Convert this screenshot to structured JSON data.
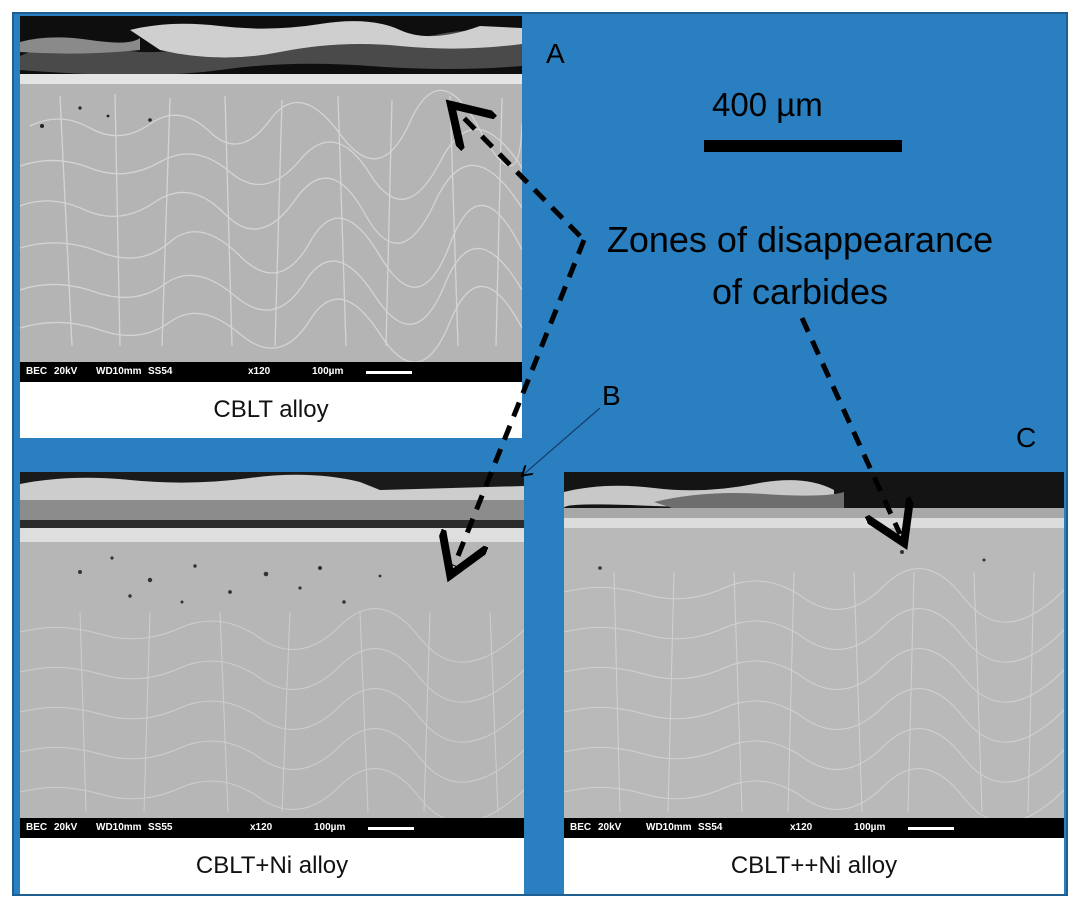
{
  "colors": {
    "background_blue": "#2a7fc0",
    "frame_border": "#1d5f92",
    "arrow": "#000000"
  },
  "panels": {
    "a": {
      "letter": "A",
      "caption": "CBLT alloy",
      "sem_bar": {
        "mode": "BEC",
        "kv": "20kV",
        "wd": "WD10mm",
        "ss": "SS54",
        "mag": "x120",
        "scale": "100µm"
      }
    },
    "b": {
      "letter": "B",
      "caption": "CBLT+Ni alloy",
      "sem_bar": {
        "mode": "BEC",
        "kv": "20kV",
        "wd": "WD10mm",
        "ss": "SS55",
        "mag": "x120",
        "scale": "100µm"
      }
    },
    "c": {
      "letter": "C",
      "caption": "CBLT++Ni alloy",
      "sem_bar": {
        "mode": "BEC",
        "kv": "20kV",
        "wd": "WD10mm",
        "ss": "SS54",
        "mag": "x120",
        "scale": "100µm"
      }
    }
  },
  "scale": {
    "label": "400 µm"
  },
  "annotation": {
    "line1": "Zones of disappearance",
    "line2": "of carbides"
  }
}
